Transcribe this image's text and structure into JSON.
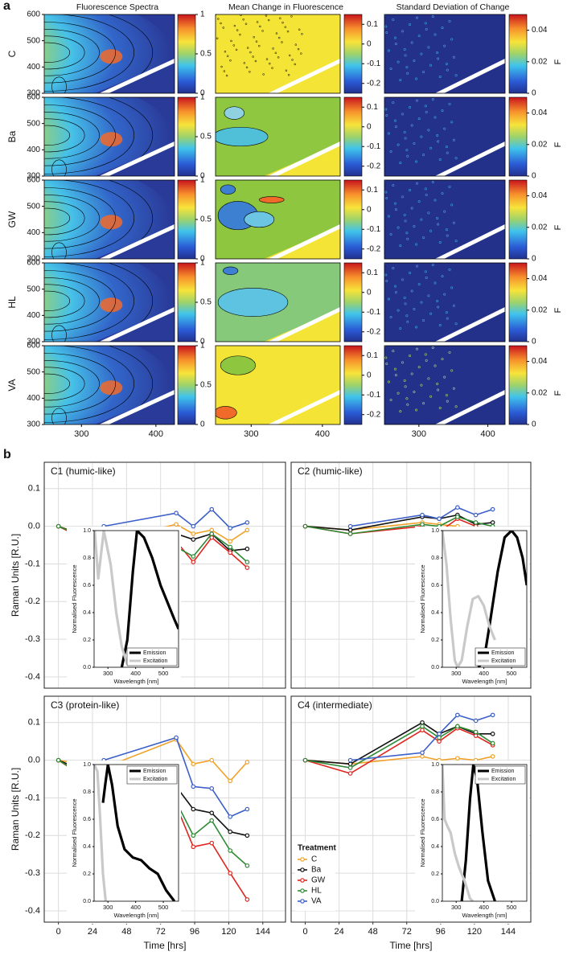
{
  "panel_a": {
    "label": "a",
    "column_titles": [
      "Fluorescence Spectra",
      "Mean Change in Fluorescence",
      "Standard Deviation of Change"
    ],
    "row_labels": [
      "C",
      "Ba",
      "GW",
      "HL",
      "VA"
    ],
    "xlim": [
      250,
      425
    ],
    "xticks": [
      300,
      400
    ],
    "ylim": [
      300,
      600
    ],
    "yticks": [
      300,
      400,
      500,
      600
    ],
    "colorbars": [
      {
        "lim": [
          0,
          1
        ],
        "ticks": [
          0,
          0.5,
          1
        ]
      },
      {
        "lim": [
          -0.25,
          0.15
        ],
        "ticks": [
          0.1,
          0,
          -0.1,
          -0.2
        ]
      },
      {
        "lim": [
          0,
          0.05
        ],
        "ticks": [
          0,
          0.02,
          0.04
        ],
        "label": "F"
      }
    ]
  },
  "panel_b": {
    "label": "b",
    "xlabel": "Time [hrs]",
    "ylabel": "Raman Units [R.U.]",
    "legend_title": "Treatment",
    "treatments": [
      {
        "name": "C",
        "color": "#f0a22a"
      },
      {
        "name": "Ba",
        "color": "#111111"
      },
      {
        "name": "GW",
        "color": "#e0251f"
      },
      {
        "name": "HL",
        "color": "#2f8a35"
      },
      {
        "name": "VA",
        "color": "#3b5fc8"
      }
    ]
  },
  "chart_data": [
    {
      "type": "line",
      "title": "C1 (humic-like)",
      "x": [
        0,
        32,
        83,
        95,
        108,
        121,
        133
      ],
      "series": [
        {
          "values": [
            0,
            -0.04,
            0.005,
            -0.02,
            -0.01,
            -0.04,
            -0.01
          ]
        },
        {
          "values": [
            0,
            -0.045,
            -0.02,
            -0.035,
            -0.02,
            -0.065,
            -0.06
          ]
        },
        {
          "values": [
            0,
            -0.06,
            -0.04,
            -0.095,
            -0.03,
            -0.07,
            -0.11
          ]
        },
        {
          "values": [
            0,
            -0.05,
            -0.055,
            -0.08,
            -0.02,
            -0.055,
            -0.095
          ]
        },
        {
          "values": [
            null,
            0,
            0.035,
            0,
            0.045,
            -0.005,
            0.01
          ]
        }
      ],
      "xlim": [
        -10,
        160
      ],
      "xticks": [
        0,
        24,
        48,
        72,
        96,
        120,
        144
      ],
      "ylim": [
        -0.43,
        0.17
      ],
      "yticks": [
        0.1,
        {
          "value": 0,
          "label": "0.0"
        },
        -0.1,
        -0.2,
        -0.3,
        -0.4
      ],
      "grid": true,
      "inset": {
        "xlabel": "Wavelength [nm]",
        "ylabel": "Normalised Fluorescence",
        "legend": "lower right",
        "xlim": [
          250,
          555
        ],
        "xticks": [
          300,
          400,
          500
        ],
        "ylim": [
          0,
          1
        ],
        "yticks": [
          {
            "value": 0,
            "label": "0.0"
          },
          0.2,
          0.4,
          0.6,
          0.8,
          {
            "value": 1,
            "label": "1.0"
          }
        ],
        "series": [
          {
            "name": "Emission",
            "color": "#000000",
            "x": [
              350,
              370,
              390,
              405,
              430,
              460,
              490,
              520,
              540,
              555
            ],
            "values": [
              0,
              0.2,
              0.7,
              1.0,
              0.95,
              0.8,
              0.6,
              0.45,
              0.35,
              0.28
            ]
          },
          {
            "name": "Excitation",
            "color": "#c9c9c9",
            "x": [
              252,
              265,
              285,
              310,
              330,
              350,
              370
            ],
            "values": [
              1.0,
              0.65,
              1.0,
              0.75,
              0.4,
              0.15,
              0.02
            ]
          }
        ]
      }
    },
    {
      "type": "line",
      "title": "C2 (humic-like)",
      "x": [
        0,
        32,
        83,
        95,
        108,
        121,
        133
      ],
      "series": [
        {
          "values": [
            0,
            -0.01,
            0.01,
            0.005,
            0,
            -0.015,
            -0.01
          ]
        },
        {
          "values": [
            0,
            -0.01,
            0.025,
            0.02,
            0.03,
            0.005,
            0.01
          ]
        },
        {
          "values": [
            0,
            -0.02,
            0,
            -0.015,
            0.02,
            0,
            -0.015
          ]
        },
        {
          "values": [
            0,
            -0.02,
            0.005,
            0,
            0.025,
            0.01,
            0
          ]
        },
        {
          "values": [
            null,
            0,
            0.03,
            0.02,
            0.05,
            0.03,
            0.045
          ]
        }
      ],
      "xlim": [
        -10,
        160
      ],
      "xticks": [
        0,
        24,
        48,
        72,
        96,
        120,
        144
      ],
      "ylim": [
        -0.43,
        0.17
      ],
      "yticks": [
        0.1,
        {
          "value": 0,
          "label": "0.0"
        },
        -0.1,
        -0.2,
        -0.3,
        -0.4
      ],
      "grid": true,
      "inset": {
        "xlabel": "Wavelength [nm]",
        "ylabel": "Normalised Fluorescence",
        "legend": "lower right",
        "xlim": [
          250,
          555
        ],
        "xticks": [
          300,
          400,
          500
        ],
        "ylim": [
          0,
          1
        ],
        "yticks": [
          {
            "value": 0,
            "label": "0.0"
          },
          0.2,
          0.4,
          0.6,
          0.8,
          {
            "value": 1,
            "label": "1.0"
          }
        ],
        "series": [
          {
            "name": "Emission",
            "color": "#000000",
            "x": [
              380,
              400,
              420,
              450,
              475,
              500,
              520,
              540,
              555
            ],
            "values": [
              0,
              0.05,
              0.3,
              0.7,
              0.95,
              1.0,
              0.95,
              0.8,
              0.6
            ]
          },
          {
            "name": "Excitation",
            "color": "#c9c9c9",
            "x": [
              250,
              265,
              280,
              295,
              305,
              320,
              340,
              360,
              380,
              400,
              420,
              440
            ],
            "values": [
              1.0,
              0.75,
              0.35,
              0.05,
              0,
              0.05,
              0.3,
              0.5,
              0.52,
              0.45,
              0.3,
              0.2
            ]
          }
        ]
      }
    },
    {
      "type": "line",
      "title": "C3 (protein-like)",
      "x": [
        0,
        32,
        83,
        95,
        108,
        121,
        133
      ],
      "series": [
        {
          "values": [
            0,
            -0.02,
            0.055,
            -0.01,
            0,
            -0.055,
            -0.005
          ]
        },
        {
          "values": [
            0,
            -0.05,
            -0.07,
            -0.13,
            -0.14,
            -0.19,
            -0.2
          ]
        },
        {
          "values": [
            0,
            -0.08,
            -0.12,
            -0.23,
            -0.22,
            -0.3,
            -0.37
          ]
        },
        {
          "values": [
            0,
            -0.075,
            -0.11,
            -0.2,
            -0.16,
            -0.24,
            -0.28
          ]
        },
        {
          "values": [
            null,
            0,
            0.06,
            -0.07,
            -0.075,
            -0.15,
            -0.13
          ]
        }
      ],
      "xlim": [
        -10,
        160
      ],
      "xticks": [
        0,
        24,
        48,
        72,
        96,
        120,
        144
      ],
      "ylim": [
        -0.43,
        0.17
      ],
      "yticks": [
        0.1,
        {
          "value": 0,
          "label": "0.0"
        },
        -0.1,
        -0.2,
        -0.3,
        -0.4
      ],
      "grid": true,
      "inset": {
        "xlabel": "Wavelength [nm]",
        "ylabel": "Normalised Fluorescence",
        "legend": "upper right",
        "xlim": [
          250,
          555
        ],
        "xticks": [
          300,
          400,
          500
        ],
        "ylim": [
          0,
          1
        ],
        "yticks": [
          {
            "value": 0,
            "label": "0.0"
          },
          0.2,
          0.4,
          0.6,
          0.8,
          {
            "value": 1,
            "label": "1.0"
          }
        ],
        "series": [
          {
            "name": "Emission",
            "color": "#000000",
            "x": [
              282,
              290,
              300,
              315,
              335,
              360,
              390,
              420,
              450,
              480,
              510,
              540
            ],
            "values": [
              0.72,
              0.85,
              1.0,
              0.85,
              0.55,
              0.38,
              0.32,
              0.3,
              0.24,
              0.2,
              0.08,
              0
            ]
          },
          {
            "name": "Excitation",
            "color": "#c9c9c9",
            "x": [
              250,
              262,
              272,
              282,
              292
            ],
            "values": [
              1.0,
              0.95,
              0.6,
              0.2,
              0
            ]
          }
        ]
      }
    },
    {
      "type": "line",
      "title": "C4 (intermediate)",
      "x": [
        0,
        32,
        83,
        95,
        108,
        121,
        133
      ],
      "series": [
        {
          "values": [
            0,
            -0.01,
            0.01,
            0,
            0.005,
            0,
            0.01
          ]
        },
        {
          "values": [
            0,
            -0.01,
            0.1,
            0.07,
            0.09,
            0.07,
            0.07
          ]
        },
        {
          "values": [
            0,
            -0.035,
            0.08,
            0.05,
            0.085,
            0.065,
            0.04
          ]
        },
        {
          "values": [
            0,
            -0.02,
            0.09,
            0.06,
            0.09,
            0.075,
            0.045
          ]
        },
        {
          "values": [
            null,
            0,
            0.02,
            0.07,
            0.12,
            0.105,
            0.12
          ]
        }
      ],
      "xlim": [
        -10,
        160
      ],
      "xticks": [
        0,
        24,
        48,
        72,
        96,
        120,
        144
      ],
      "ylim": [
        -0.43,
        0.17
      ],
      "yticks": [
        0.1,
        {
          "value": 0,
          "label": "0.0"
        },
        -0.1,
        -0.2,
        -0.3,
        -0.4
      ],
      "grid": true,
      "legend": "lower left",
      "inset": {
        "xlabel": "Wavelength [nm]",
        "ylabel": "Normalised Fluorescence",
        "legend": "upper right",
        "xlim": [
          250,
          555
        ],
        "xticks": [
          300,
          400,
          500
        ],
        "ylim": [
          0,
          1
        ],
        "yticks": [
          {
            "value": 0,
            "label": "0.0"
          },
          0.2,
          0.4,
          0.6,
          0.8,
          {
            "value": 1,
            "label": "1.0"
          }
        ],
        "series": [
          {
            "name": "Emission",
            "color": "#000000",
            "x": [
              320,
              335,
              350,
              362,
              375,
              395,
              415,
              440
            ],
            "values": [
              0,
              0.3,
              0.75,
              1.0,
              0.9,
              0.5,
              0.15,
              0
            ]
          },
          {
            "name": "Excitation",
            "color": "#c9c9c9",
            "x": [
              250,
              258,
              268,
              280,
              295,
              310,
              330,
              350,
              360
            ],
            "values": [
              1.0,
              0.6,
              0.55,
              0.5,
              0.35,
              0.25,
              0.15,
              0.02,
              0
            ]
          }
        ]
      }
    }
  ]
}
